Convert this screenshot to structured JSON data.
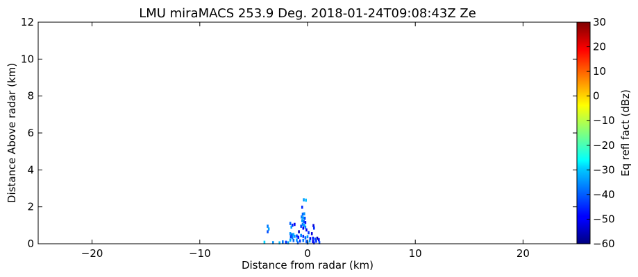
{
  "chart_data": {
    "type": "heatmap",
    "title": "LMU miraMACS 253.9 Deg. 2018-01-24T09:08:43Z  Ze",
    "xlabel": "Distance from radar (km)",
    "ylabel": "Distance Above radar  (km)",
    "xlim": [
      -25,
      25
    ],
    "ylim": [
      0,
      12
    ],
    "xticks": [
      -20,
      -10,
      0,
      10,
      20
    ],
    "yticks": [
      0,
      2,
      4,
      6,
      8,
      10,
      12
    ],
    "grid": false,
    "colorbar": {
      "label": "Eq refl fact (dBz)",
      "range": [
        -60,
        30
      ],
      "ticks": [
        30,
        20,
        10,
        0,
        -10,
        -20,
        -30,
        -40,
        -50,
        -60
      ],
      "colormap": "jet"
    },
    "echoes": [
      {
        "x": -0.35,
        "y": 2.38,
        "dbz": -35
      },
      {
        "x": -0.15,
        "y": 2.36,
        "dbz": -32
      },
      {
        "x": -0.5,
        "y": 1.98,
        "dbz": -45
      },
      {
        "x": -0.45,
        "y": 1.6,
        "dbz": -40
      },
      {
        "x": -0.3,
        "y": 1.62,
        "dbz": -36
      },
      {
        "x": -0.55,
        "y": 1.45,
        "dbz": -38
      },
      {
        "x": -0.4,
        "y": 1.4,
        "dbz": -34
      },
      {
        "x": -0.25,
        "y": 1.38,
        "dbz": -42
      },
      {
        "x": -0.5,
        "y": 1.25,
        "dbz": -35
      },
      {
        "x": -0.35,
        "y": 1.2,
        "dbz": -40
      },
      {
        "x": -0.2,
        "y": 1.15,
        "dbz": -48
      },
      {
        "x": -0.45,
        "y": 1.05,
        "dbz": -38
      },
      {
        "x": -0.3,
        "y": 1.0,
        "dbz": -33
      },
      {
        "x": -0.6,
        "y": 0.95,
        "dbz": -42
      },
      {
        "x": -0.4,
        "y": 0.85,
        "dbz": -50
      },
      {
        "x": -0.2,
        "y": 0.9,
        "dbz": -37
      },
      {
        "x": 0.55,
        "y": 0.98,
        "dbz": -52
      },
      {
        "x": 0.6,
        "y": 0.85,
        "dbz": -45
      },
      {
        "x": -1.6,
        "y": 1.1,
        "dbz": -40
      },
      {
        "x": -1.4,
        "y": 1.0,
        "dbz": -46
      },
      {
        "x": -1.5,
        "y": 0.9,
        "dbz": -35
      },
      {
        "x": -1.2,
        "y": 1.05,
        "dbz": -50
      },
      {
        "x": -3.7,
        "y": 0.95,
        "dbz": -38
      },
      {
        "x": -3.6,
        "y": 0.8,
        "dbz": -34
      },
      {
        "x": -3.7,
        "y": 0.65,
        "dbz": -42
      },
      {
        "x": -0.8,
        "y": 0.65,
        "dbz": -55
      },
      {
        "x": -0.1,
        "y": 0.75,
        "dbz": -50
      },
      {
        "x": 0.1,
        "y": 0.6,
        "dbz": -44
      },
      {
        "x": 0.4,
        "y": 0.55,
        "dbz": -52
      },
      {
        "x": -1.6,
        "y": 0.55,
        "dbz": -36
      },
      {
        "x": -1.45,
        "y": 0.48,
        "dbz": -40
      },
      {
        "x": -1.3,
        "y": 0.5,
        "dbz": -33
      },
      {
        "x": -1.55,
        "y": 0.38,
        "dbz": -44
      },
      {
        "x": -1.4,
        "y": 0.33,
        "dbz": -38
      },
      {
        "x": -1.2,
        "y": 0.4,
        "dbz": -35
      },
      {
        "x": -1.0,
        "y": 0.42,
        "dbz": -42
      },
      {
        "x": -0.85,
        "y": 0.35,
        "dbz": -48
      },
      {
        "x": -0.6,
        "y": 0.45,
        "dbz": -37
      },
      {
        "x": -0.4,
        "y": 0.4,
        "dbz": -45
      },
      {
        "x": -0.2,
        "y": 0.32,
        "dbz": -40
      },
      {
        "x": 0.0,
        "y": 0.38,
        "dbz": -36
      },
      {
        "x": 0.25,
        "y": 0.28,
        "dbz": -50
      },
      {
        "x": 0.5,
        "y": 0.3,
        "dbz": -46
      },
      {
        "x": 0.7,
        "y": 0.25,
        "dbz": -42
      },
      {
        "x": 0.9,
        "y": 0.3,
        "dbz": -55
      },
      {
        "x": 1.05,
        "y": 0.22,
        "dbz": -48
      },
      {
        "x": -1.6,
        "y": 0.2,
        "dbz": -34
      },
      {
        "x": -1.3,
        "y": 0.18,
        "dbz": -40
      },
      {
        "x": -1.0,
        "y": 0.2,
        "dbz": -36
      },
      {
        "x": -0.7,
        "y": 0.15,
        "dbz": -44
      },
      {
        "x": -0.4,
        "y": 0.18,
        "dbz": -38
      },
      {
        "x": -0.1,
        "y": 0.12,
        "dbz": -42
      },
      {
        "x": 0.2,
        "y": 0.15,
        "dbz": -35
      },
      {
        "x": 0.5,
        "y": 0.12,
        "dbz": -50
      },
      {
        "x": 0.8,
        "y": 0.14,
        "dbz": -44
      },
      {
        "x": -2.3,
        "y": 0.1,
        "dbz": -38
      },
      {
        "x": -2.0,
        "y": 0.08,
        "dbz": -45
      },
      {
        "x": -1.8,
        "y": 0.05,
        "dbz": -34
      },
      {
        "x": -4.0,
        "y": 0.08,
        "dbz": -30
      },
      {
        "x": -3.2,
        "y": 0.06,
        "dbz": -36
      },
      {
        "x": -2.6,
        "y": 0.05,
        "dbz": -32
      },
      {
        "x": -0.9,
        "y": 0.05,
        "dbz": -40
      },
      {
        "x": 0.0,
        "y": 0.04,
        "dbz": -38
      },
      {
        "x": 0.6,
        "y": 0.05,
        "dbz": -46
      },
      {
        "x": 1.1,
        "y": 0.06,
        "dbz": -42
      }
    ]
  }
}
